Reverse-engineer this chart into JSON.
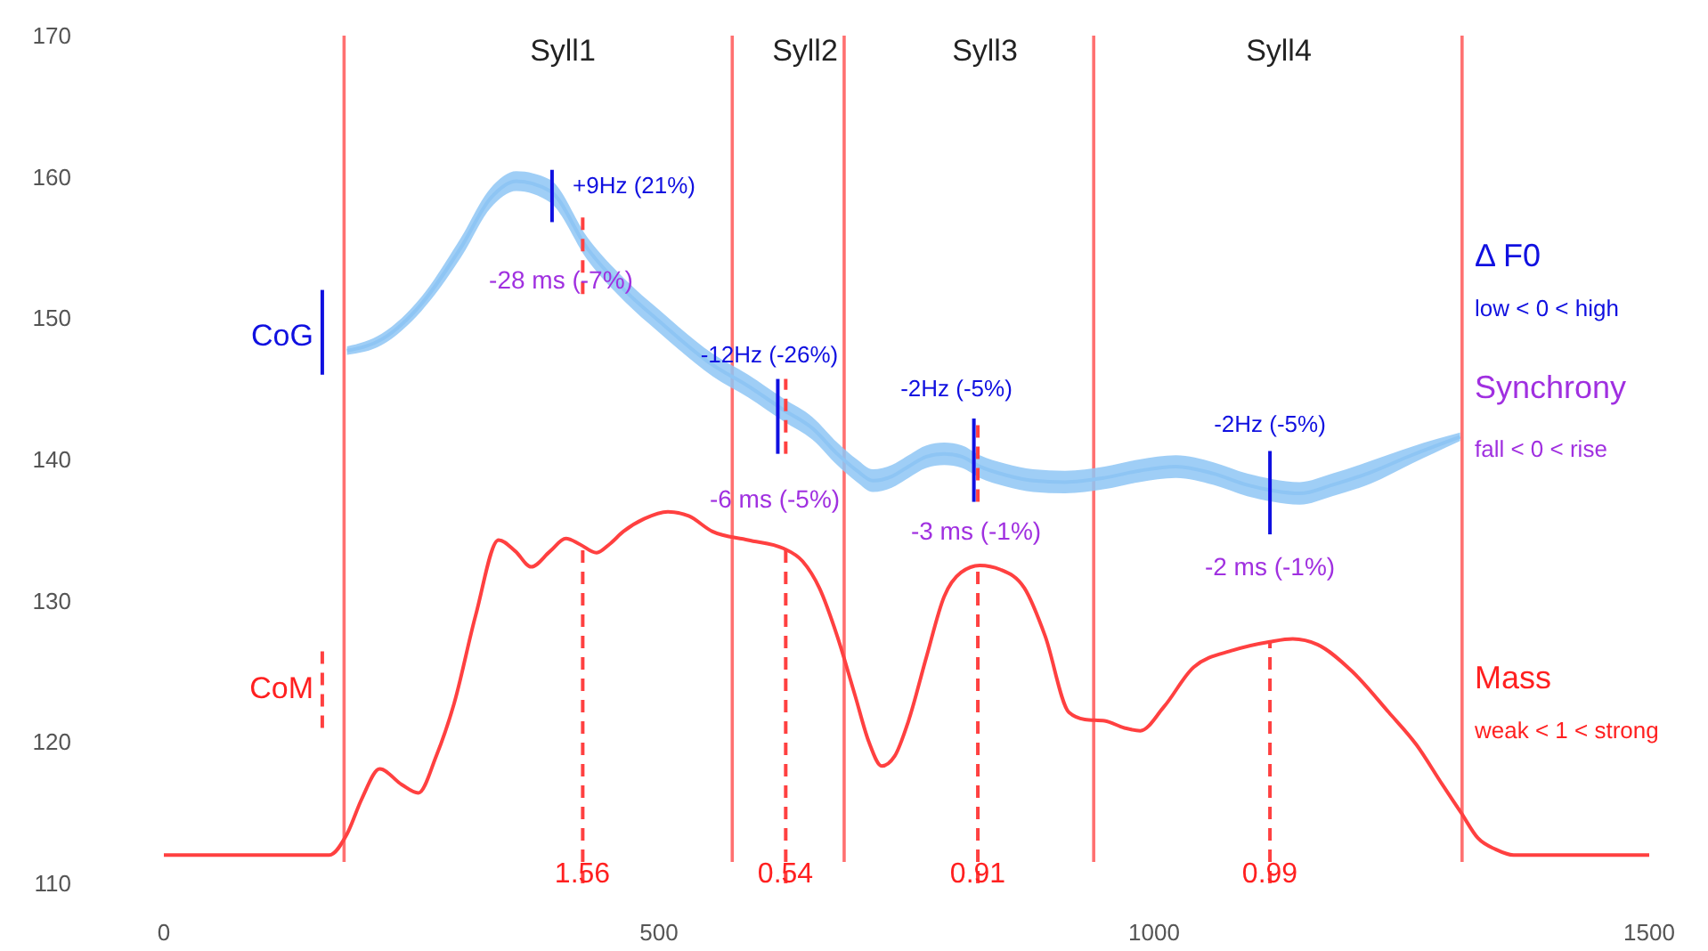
{
  "chart_data": {
    "type": "line",
    "xlim": [
      0,
      1500
    ],
    "ylim": [
      110,
      170
    ],
    "xticks": [
      0,
      500,
      1000,
      1500
    ],
    "yticks": [
      110,
      120,
      130,
      140,
      150,
      160,
      170
    ],
    "grid": false,
    "line_style": "solid",
    "marker": "none",
    "series": [
      {
        "color": "#8ec5f4",
        "x": [
          185,
          220,
          260,
          300,
          330,
          356,
          390,
          428,
          465,
          500,
          554,
          590,
          626,
          655,
          680,
          700,
          716,
          735,
          752,
          770,
          788,
          806,
          824,
          850,
          878,
          910,
          950,
          985,
          1022,
          1060,
          1094,
          1120,
          1147,
          1180,
          1219,
          1260,
          1309
        ],
        "values": [
          147.7,
          148.5,
          151,
          155,
          158.5,
          159.7,
          159,
          154.9,
          152,
          149.8,
          146.7,
          145.2,
          143.5,
          142.2,
          140.4,
          139.2,
          138.5,
          138.8,
          139.5,
          140.2,
          140.4,
          140.2,
          139.5,
          138.9,
          138.5,
          138.4,
          138.7,
          139.2,
          139.5,
          139,
          138.2,
          137.8,
          137.6,
          138.2,
          139.1,
          140.3,
          141.6
        ],
        "lower": [
          147.4,
          148.1,
          150.5,
          154.3,
          157.8,
          159,
          158.2,
          154.1,
          151.2,
          149,
          145.9,
          144.4,
          142.7,
          141.4,
          139.6,
          138.4,
          137.7,
          138,
          138.7,
          139.4,
          139.6,
          139.4,
          138.7,
          138.1,
          137.7,
          137.6,
          137.9,
          138.4,
          138.7,
          138.2,
          137.4,
          137,
          136.8,
          137.4,
          138.3,
          139.7,
          141.3
        ],
        "upper": [
          148,
          148.9,
          151.5,
          155.7,
          159.2,
          160.4,
          159.8,
          155.7,
          152.8,
          150.6,
          147.5,
          146,
          144.3,
          143,
          141.2,
          140,
          139.3,
          139.6,
          140.3,
          141,
          141.2,
          141,
          140.3,
          139.7,
          139.3,
          139.2,
          139.5,
          140,
          140.3,
          139.8,
          139,
          138.6,
          138.4,
          139,
          139.9,
          140.9,
          141.9
        ]
      },
      {
        "color": "#ff4040",
        "x": [
          0,
          167,
          185,
          200,
          218,
          240,
          257,
          275,
          293,
          315,
          338,
          355,
          371,
          390,
          406,
          420,
          437,
          450,
          464,
          485,
          509,
          530,
          554,
          590,
          626,
          645,
          662,
          680,
          698,
          712,
          725,
          738,
          752,
          770,
          788,
          805,
          824,
          845,
          869,
          890,
          914,
          930,
          950,
          970,
          986,
          1010,
          1040,
          1080,
          1117,
          1140,
          1165,
          1200,
          1237,
          1265,
          1291,
          1310,
          1327,
          1345,
          1363,
          1420,
          1500
        ],
        "values": [
          112,
          112,
          113.5,
          116,
          118.1,
          117,
          116.4,
          119,
          122.7,
          129,
          134.3,
          133.5,
          132.4,
          133.5,
          134.4,
          134,
          133.4,
          134,
          134.9,
          135.8,
          136.3,
          136,
          134.9,
          134.3,
          133.7,
          132.8,
          130.9,
          127.5,
          123.3,
          120,
          118.3,
          119,
          121.5,
          126,
          130.3,
          132,
          132.5,
          132.2,
          130.9,
          127.5,
          122.1,
          121.6,
          121.5,
          121,
          120.8,
          122.5,
          125.3,
          126.5,
          127.1,
          127.3,
          126.9,
          125,
          122.1,
          119.8,
          117,
          115,
          113.2,
          112.4,
          112,
          112,
          112
        ]
      },
      {
        "color": "#ff4040",
        "line_style": "dashed",
        "x": [
          423,
          423
        ],
        "values": [
          110,
          133.8
        ]
      },
      {
        "color": "#ff4040",
        "line_style": "dashed",
        "x": [
          628,
          628
        ],
        "values": [
          110,
          133.6
        ]
      },
      {
        "color": "#ff4040",
        "line_style": "dashed",
        "x": [
          822,
          822
        ],
        "values": [
          110,
          132.5
        ]
      },
      {
        "color": "#ff4040",
        "line_style": "dashed",
        "x": [
          1117,
          1117
        ],
        "values": [
          110,
          127.1
        ]
      },
      {
        "color": "#1010e0",
        "x": [
          392,
          392
        ],
        "values": [
          156.8,
          160.5
        ]
      },
      {
        "color": "#ff4040",
        "line_style": "dashed",
        "x": [
          423,
          423
        ],
        "values": [
          151.7,
          157.4
        ]
      },
      {
        "color": "#1010e0",
        "x": [
          620,
          620
        ],
        "values": [
          140.4,
          145.7
        ]
      },
      {
        "color": "#ff4040",
        "line_style": "dashed",
        "x": [
          628,
          628
        ],
        "values": [
          140.4,
          145.7
        ]
      },
      {
        "color": "#1010e0",
        "x": [
          818,
          818
        ],
        "values": [
          137,
          142.9
        ]
      },
      {
        "color": "#ff4040",
        "line_style": "dashed",
        "x": [
          822,
          822
        ],
        "values": [
          137,
          142.9
        ]
      },
      {
        "color": "#1010e0",
        "x": [
          1117,
          1117
        ],
        "values": [
          134.7,
          140.6
        ]
      },
      {
        "color": "#1010e0",
        "x": [
          160,
          160
        ],
        "values": [
          146,
          152
        ]
      },
      {
        "color": "#ff4040",
        "line_style": "dashed",
        "x": [
          160,
          160
        ],
        "values": [
          121,
          127
        ]
      }
    ],
    "ref_lines": [
      {
        "axis": "x",
        "value": 182,
        "color": "#ff7070"
      },
      {
        "axis": "x",
        "value": 574,
        "color": "#ff7070"
      },
      {
        "axis": "x",
        "value": 687,
        "color": "#ff7070"
      },
      {
        "axis": "x",
        "value": 939,
        "color": "#ff7070"
      },
      {
        "axis": "x",
        "value": 1311,
        "color": "#ff7070"
      }
    ],
    "annotations": [
      "Syll1",
      "Syll2",
      "Syll3",
      "Syll4",
      "+9Hz (21%)",
      "-28 ms (-7%)",
      "-12Hz (-26%)",
      "-6 ms (-5%)",
      "-2Hz (-5%)",
      "-3 ms (-1%)",
      "-2Hz (-5%)",
      "-2 ms (-1%)",
      "1.56",
      "0.54",
      "0.91",
      "0.99",
      "CoG",
      "CoM",
      "Δ F0",
      "low < 0 < high",
      "Synchrony",
      "fall < 0 < rise",
      "Mass",
      "weak < 1 < strong"
    ]
  }
}
